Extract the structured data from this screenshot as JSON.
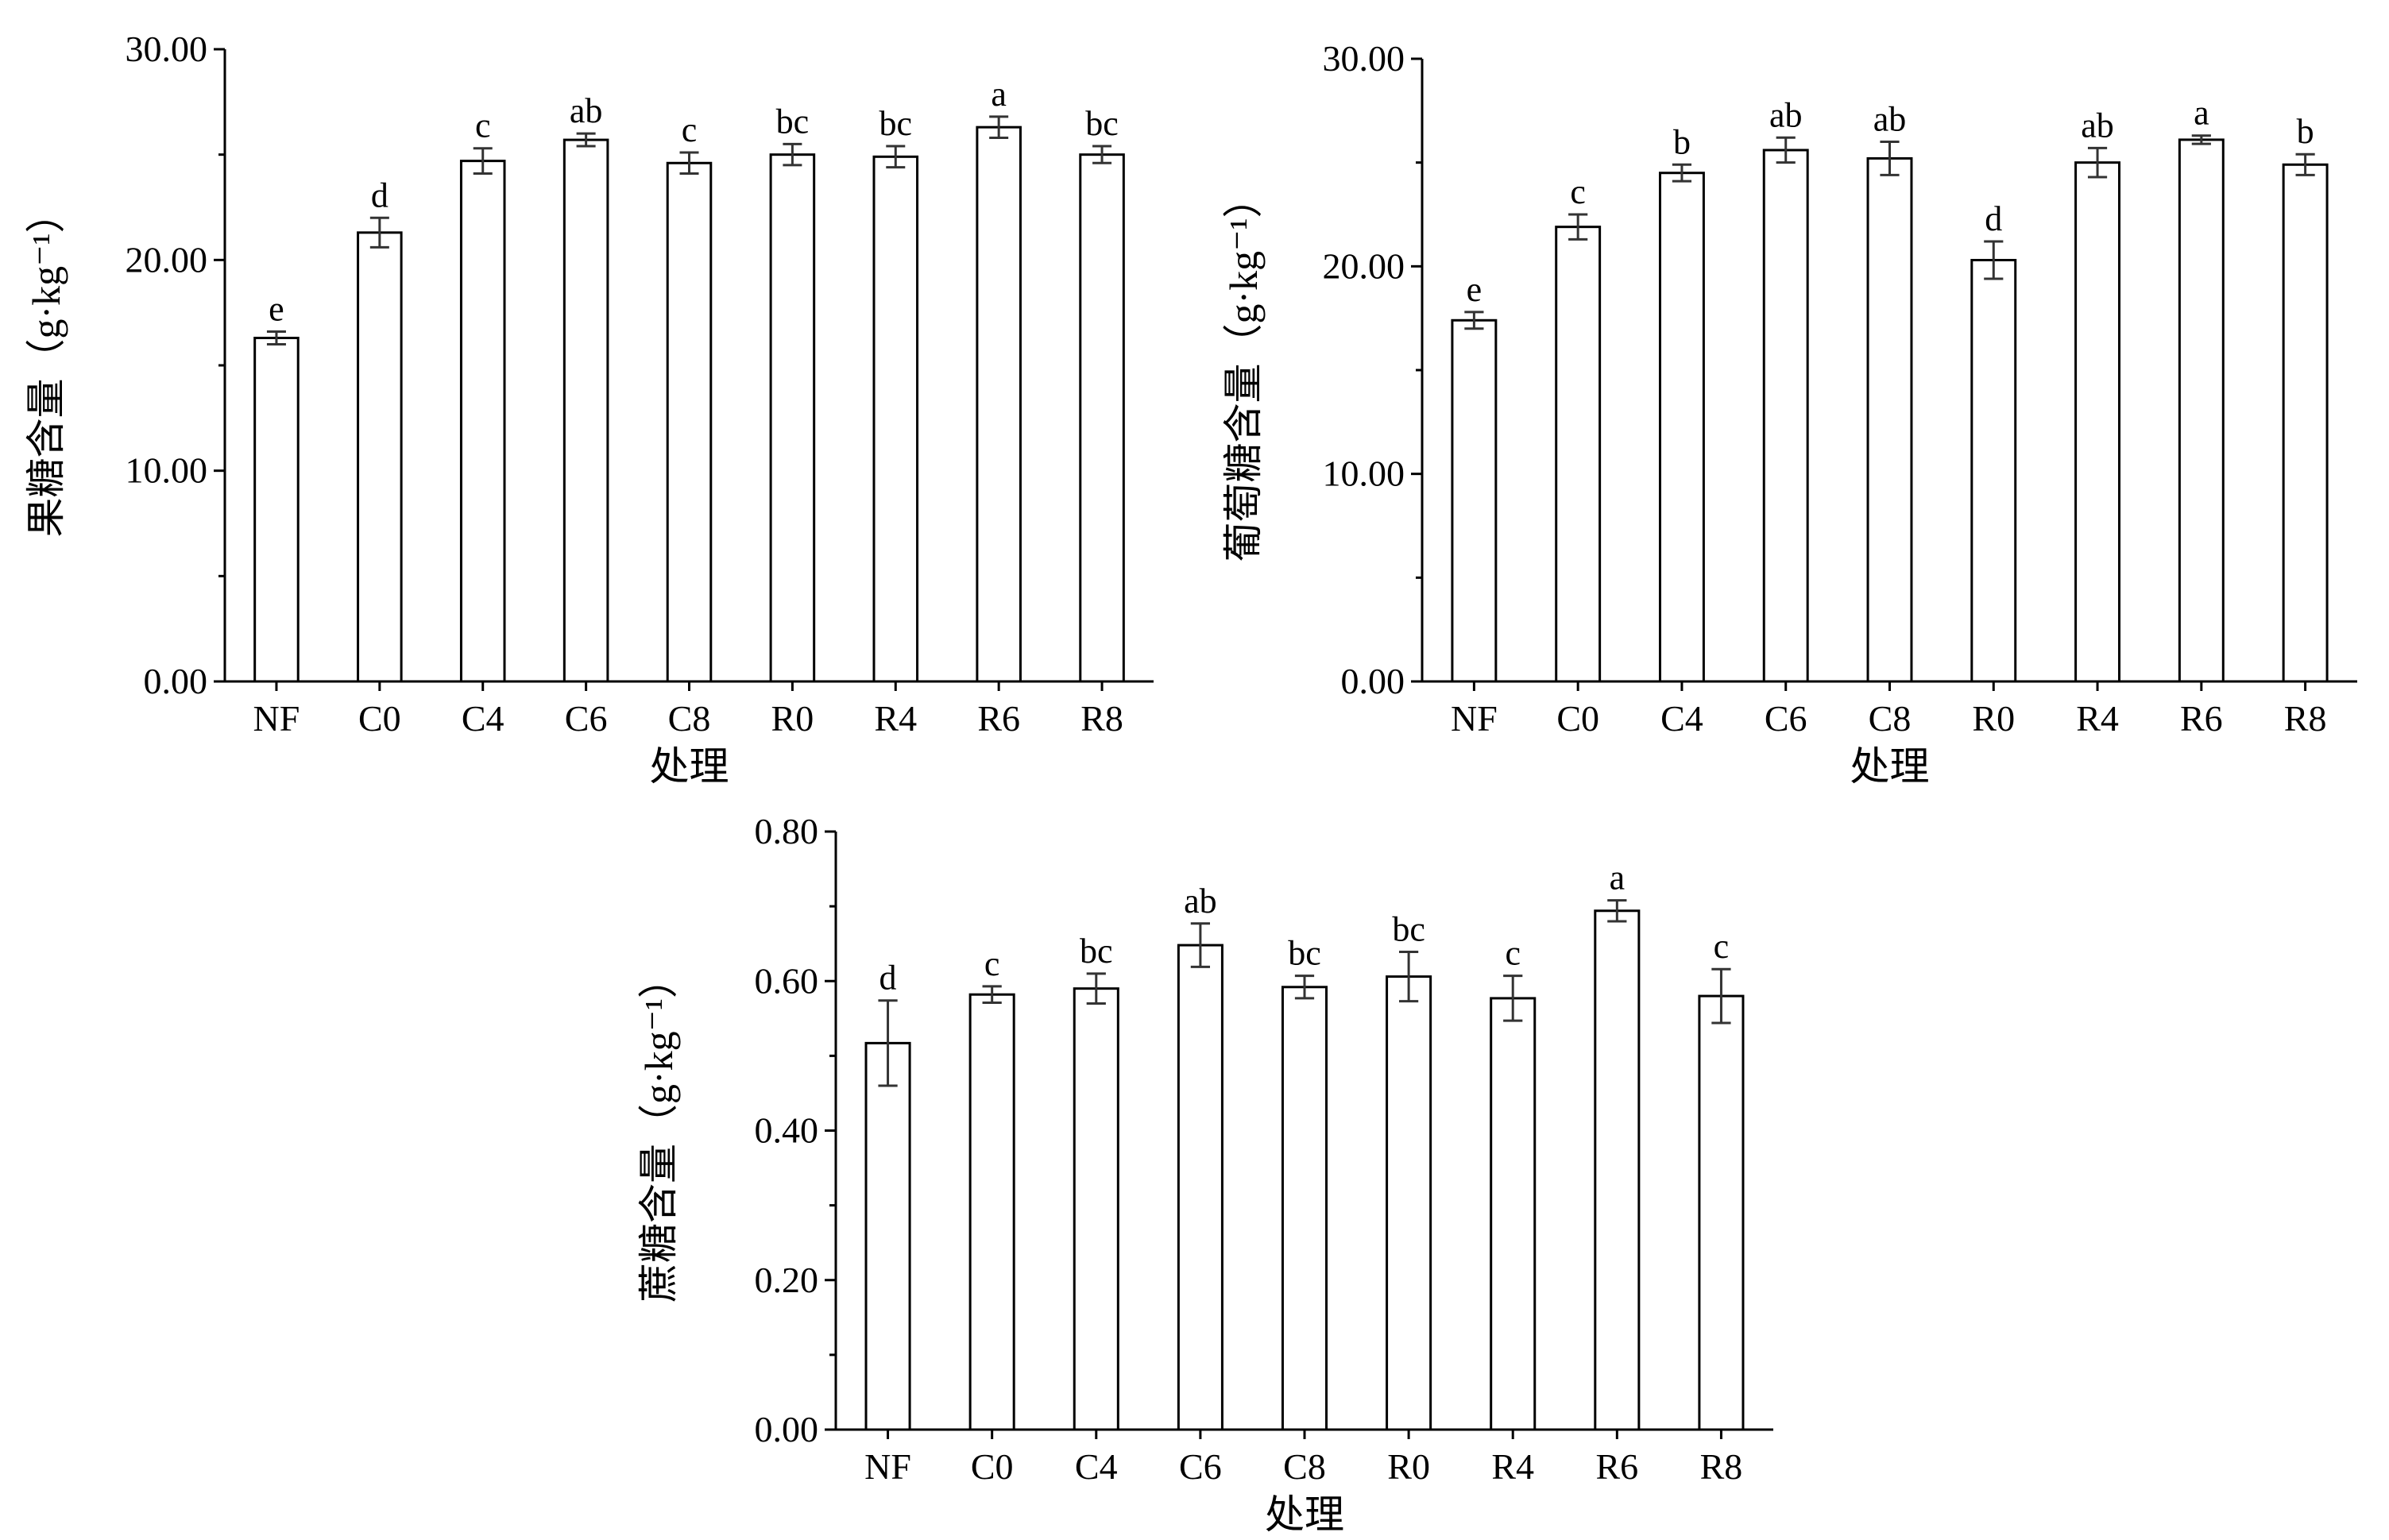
{
  "chart_data": [
    {
      "type": "bar",
      "categories": [
        "NF",
        "C0",
        "C4",
        "C6",
        "C8",
        "R0",
        "R4",
        "R6",
        "R8"
      ],
      "values": [
        16.3,
        21.3,
        24.7,
        25.7,
        24.6,
        25.0,
        24.9,
        26.3,
        25.0
      ],
      "errors": [
        0.3,
        0.7,
        0.6,
        0.3,
        0.5,
        0.5,
        0.5,
        0.5,
        0.4
      ],
      "significance": [
        "e",
        "d",
        "c",
        "ab",
        "c",
        "bc",
        "bc",
        "a",
        "bc"
      ],
      "xlabel": "处理",
      "ylabel": "果糖含量（g·kg⁻¹）",
      "ylim": [
        0,
        30
      ],
      "yticks": [
        "0.00",
        "10.00",
        "20.00",
        "30.00"
      ],
      "grid": false,
      "bar_fill": "#ffffff",
      "bar_stroke": "#000000"
    },
    {
      "type": "bar",
      "categories": [
        "NF",
        "C0",
        "C4",
        "C6",
        "C8",
        "R0",
        "R4",
        "R6",
        "R8"
      ],
      "values": [
        17.4,
        21.9,
        24.5,
        25.6,
        25.2,
        20.3,
        25.0,
        26.1,
        24.9
      ],
      "errors": [
        0.4,
        0.6,
        0.4,
        0.6,
        0.8,
        0.9,
        0.7,
        0.2,
        0.5
      ],
      "significance": [
        "e",
        "c",
        "b",
        "ab",
        "ab",
        "d",
        "ab",
        "a",
        "b"
      ],
      "xlabel": "处理",
      "ylabel": "葡萄糖含量（g·kg⁻¹）",
      "ylim": [
        0,
        30
      ],
      "yticks": [
        "0.00",
        "10.00",
        "20.00",
        "30.00"
      ],
      "grid": false,
      "bar_fill": "#ffffff",
      "bar_stroke": "#000000"
    },
    {
      "type": "bar",
      "categories": [
        "NF",
        "C0",
        "C4",
        "C6",
        "C8",
        "R0",
        "R4",
        "R6",
        "R8"
      ],
      "values": [
        0.517,
        0.582,
        0.59,
        0.648,
        0.592,
        0.606,
        0.577,
        0.694,
        0.58
      ],
      "errors": [
        0.057,
        0.011,
        0.02,
        0.029,
        0.015,
        0.033,
        0.03,
        0.014,
        0.036
      ],
      "significance": [
        "d",
        "c",
        "bc",
        "ab",
        "bc",
        "bc",
        "c",
        "a",
        "c"
      ],
      "xlabel": "处理",
      "ylabel": "蔗糖含量（g·kg⁻¹）",
      "ylim": [
        0,
        0.8
      ],
      "yticks": [
        "0.00",
        "0.20",
        "0.40",
        "0.60",
        "0.80"
      ],
      "grid": false,
      "bar_fill": "#ffffff",
      "bar_stroke": "#000000"
    }
  ]
}
